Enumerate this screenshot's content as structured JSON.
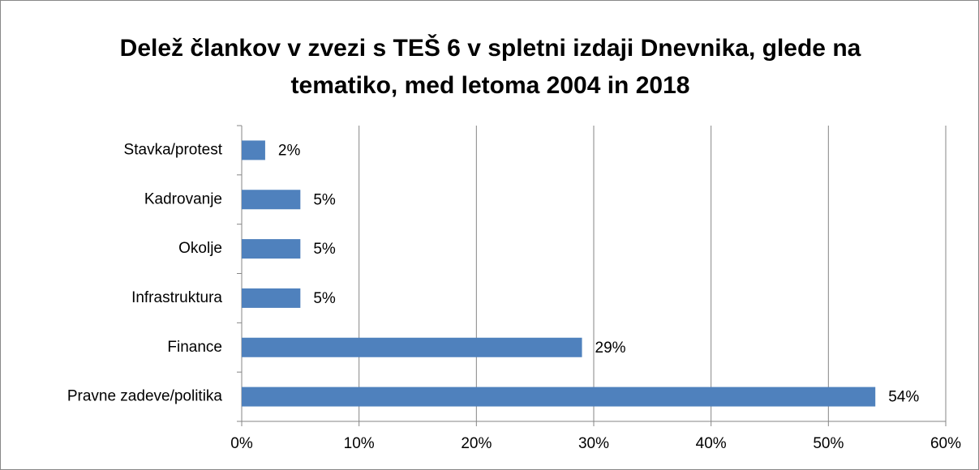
{
  "chart_data": {
    "type": "bar",
    "orientation": "horizontal",
    "title": "Delež člankov v zvezi s TEŠ 6 v spletni izdaji Dnevnika, glede na tematiko, med letoma 2004 in 2018",
    "categories": [
      "Stavka/protest",
      "Kadrovanje",
      "Okolje",
      "Infrastruktura",
      "Finance",
      "Pravne zadeve/politika"
    ],
    "values": [
      2,
      5,
      5,
      5,
      29,
      54
    ],
    "value_labels": [
      "2%",
      "5%",
      "5%",
      "5%",
      "29%",
      "54%"
    ],
    "color": "#4f81bd",
    "xlim": [
      0,
      60
    ],
    "xticks": [
      {
        "value": 0,
        "label": "0%"
      },
      {
        "value": 10,
        "label": "10%"
      },
      {
        "value": 20,
        "label": "20%"
      },
      {
        "value": 30,
        "label": "30%"
      },
      {
        "value": 40,
        "label": "40%"
      },
      {
        "value": 50,
        "label": "50%"
      },
      {
        "value": 60,
        "label": "60%"
      }
    ],
    "grid": true
  }
}
